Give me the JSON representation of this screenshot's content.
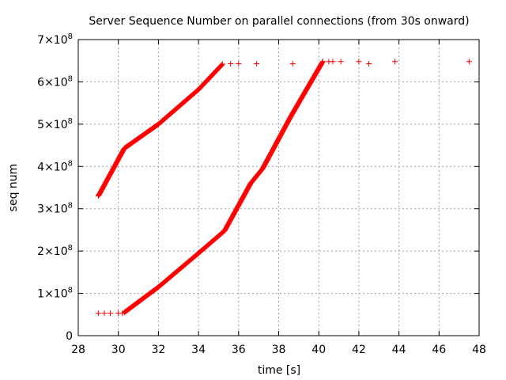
{
  "chart_data": {
    "type": "scatter",
    "title": "Server Sequence Number on parallel connections (from 30s onward)",
    "xlabel": "time [s]",
    "ylabel": "seq num",
    "xlim": [
      28,
      48
    ],
    "ylim": [
      0,
      700000000
    ],
    "grid": true,
    "marker": "+",
    "x_ticks": [
      28,
      30,
      32,
      34,
      36,
      38,
      40,
      42,
      44,
      46,
      48
    ],
    "x_tick_labels": [
      "28",
      "30",
      "32",
      "34",
      "36",
      "38",
      "40",
      "42",
      "44",
      "46",
      "48"
    ],
    "y_ticks": [
      0,
      100000000,
      200000000,
      300000000,
      400000000,
      500000000,
      600000000,
      700000000
    ],
    "y_tick_labels": [
      {
        "mantissa": "0",
        "exponent": ""
      },
      {
        "mantissa": "1×10",
        "exponent": "8"
      },
      {
        "mantissa": "2×10",
        "exponent": "8"
      },
      {
        "mantissa": "3×10",
        "exponent": "8"
      },
      {
        "mantissa": "4×10",
        "exponent": "8"
      },
      {
        "mantissa": "5×10",
        "exponent": "8"
      },
      {
        "mantissa": "6×10",
        "exponent": "8"
      },
      {
        "mantissa": "7×10",
        "exponent": "8"
      }
    ],
    "series": [
      {
        "color": "#ff0000",
        "dense_segments": [
          [
            [
              29.0,
              330000000
            ],
            [
              30.3,
              443000000
            ],
            [
              32.0,
              500000000
            ],
            [
              34.0,
              582000000
            ],
            [
              35.2,
              642000000
            ]
          ],
          [
            [
              30.3,
              55000000
            ],
            [
              32.0,
              115000000
            ],
            [
              34.0,
              195000000
            ],
            [
              35.3,
              248000000
            ],
            [
              36.6,
              360000000
            ],
            [
              37.2,
              395000000
            ],
            [
              38.6,
              518000000
            ],
            [
              40.2,
              648000000
            ]
          ]
        ],
        "points": [
          [
            29.0,
            53000000
          ],
          [
            29.3,
            53000000
          ],
          [
            29.6,
            53000000
          ],
          [
            30.0,
            53000000
          ],
          [
            30.2,
            53000000
          ],
          [
            35.6,
            643000000
          ],
          [
            36.0,
            643000000
          ],
          [
            36.9,
            643000000
          ],
          [
            38.7,
            643000000
          ],
          [
            40.5,
            648000000
          ],
          [
            40.7,
            648000000
          ],
          [
            41.1,
            648000000
          ],
          [
            42.0,
            648000000
          ],
          [
            42.5,
            643000000
          ],
          [
            43.8,
            648000000
          ],
          [
            47.5,
            648000000
          ]
        ]
      }
    ]
  }
}
